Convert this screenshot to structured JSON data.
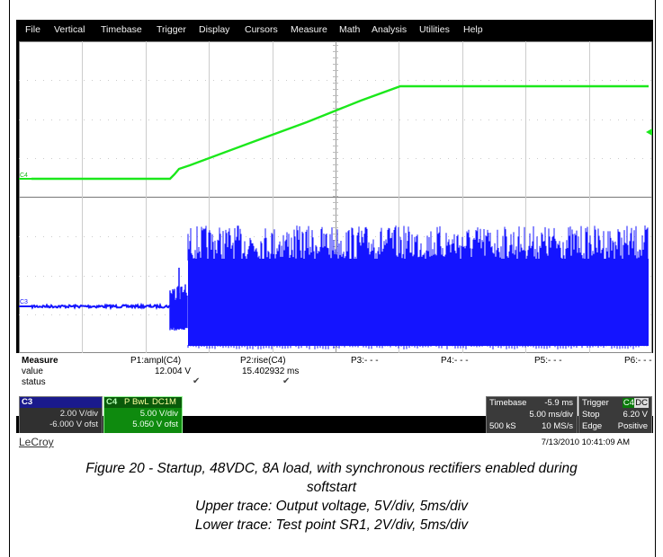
{
  "menu": [
    "File",
    "Vertical",
    "Timebase",
    "Trigger",
    "Display",
    "Cursors",
    "Measure",
    "Math",
    "Analysis",
    "Utilities",
    "Help"
  ],
  "traces": {
    "upper": {
      "label": "C4",
      "color": "#1be81b"
    },
    "lower": {
      "label": "C3",
      "color": "#1414ff"
    }
  },
  "measure": {
    "header": "Measure",
    "row_value": "value",
    "row_status": "status",
    "params": [
      {
        "name": "P1:ampl(C4)",
        "value": "12.004 V",
        "status": "✔"
      },
      {
        "name": "P2:rise(C4)",
        "value": "15.402932 ms",
        "status": "✔"
      },
      {
        "name": "P3:- - -",
        "value": "",
        "status": ""
      },
      {
        "name": "P4:- - -",
        "value": "",
        "status": ""
      },
      {
        "name": "P5:- - -",
        "value": "",
        "status": ""
      },
      {
        "name": "P6:- - -",
        "value": "",
        "status": ""
      }
    ]
  },
  "c3_box": {
    "label": "C3",
    "vdiv": "2.00 V/div",
    "ofst": "-6.000 V ofst"
  },
  "c4_box": {
    "label": "C4",
    "tags": [
      "P",
      "BwL",
      "DC1M"
    ],
    "vdiv": "5.00 V/div",
    "ofst": "5.050 V ofst"
  },
  "timebase_box": {
    "title": "Timebase",
    "delay": "-5.9 ms",
    "tdiv": "5.00 ms/div",
    "samples": "500 kS",
    "rate": "10 MS/s"
  },
  "trigger_box": {
    "title": "Trigger",
    "src": "C4",
    "coupling": "DC",
    "mode": "Stop",
    "level": "6.20 V",
    "type": "Edge",
    "slope": "Positive"
  },
  "logo": "LeCroy",
  "datetime": "7/13/2010 10:41:09 AM",
  "caption": {
    "line1": "Figure 20 - Startup, 48VDC, 8A load, with synchronous rectifiers enabled during",
    "line2": "softstart",
    "line3": "Upper trace: Output voltage, 5V/div, 5ms/div",
    "line4": "Lower trace: Test point SR1, 2V/div, 5ms/div"
  }
}
